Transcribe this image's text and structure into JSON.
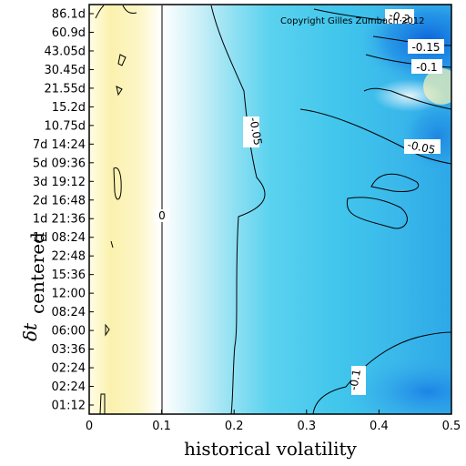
{
  "chart_data": {
    "type": "heatmap",
    "xlabel": "historical volatility",
    "ylabel_main": "δt",
    "ylabel_sub": "centered",
    "xlim": [
      0,
      0.5
    ],
    "x_ticks": [
      "0",
      "0.1",
      "0.2",
      "0.3",
      "0.4",
      "0.5"
    ],
    "y_ticks": [
      "01:12",
      "02:24",
      "02:24",
      "03:36",
      "06:00",
      "08:24",
      "12:00",
      "15:36",
      "22:48",
      "1d 08:24",
      "1d 21:36",
      "2d 16:48",
      "3d 19:12",
      "5d 09:36",
      "7d 14:24",
      "10.75d",
      "15.2d",
      "21.55d",
      "30.45d",
      "43.05d",
      "60.9d",
      "86.1d"
    ],
    "copyright": "Copyright Gilles Zumbach 2012",
    "contour_labels": [
      "0",
      "-0.05",
      "-0.05",
      "-0.1",
      "-0.1",
      "-0.15",
      "-0.2"
    ],
    "colors": {
      "positive": "#fbf3b6",
      "zero": "#ffffff",
      "negative_low": "#57d3f0",
      "negative_high": "#0f86e8"
    }
  }
}
